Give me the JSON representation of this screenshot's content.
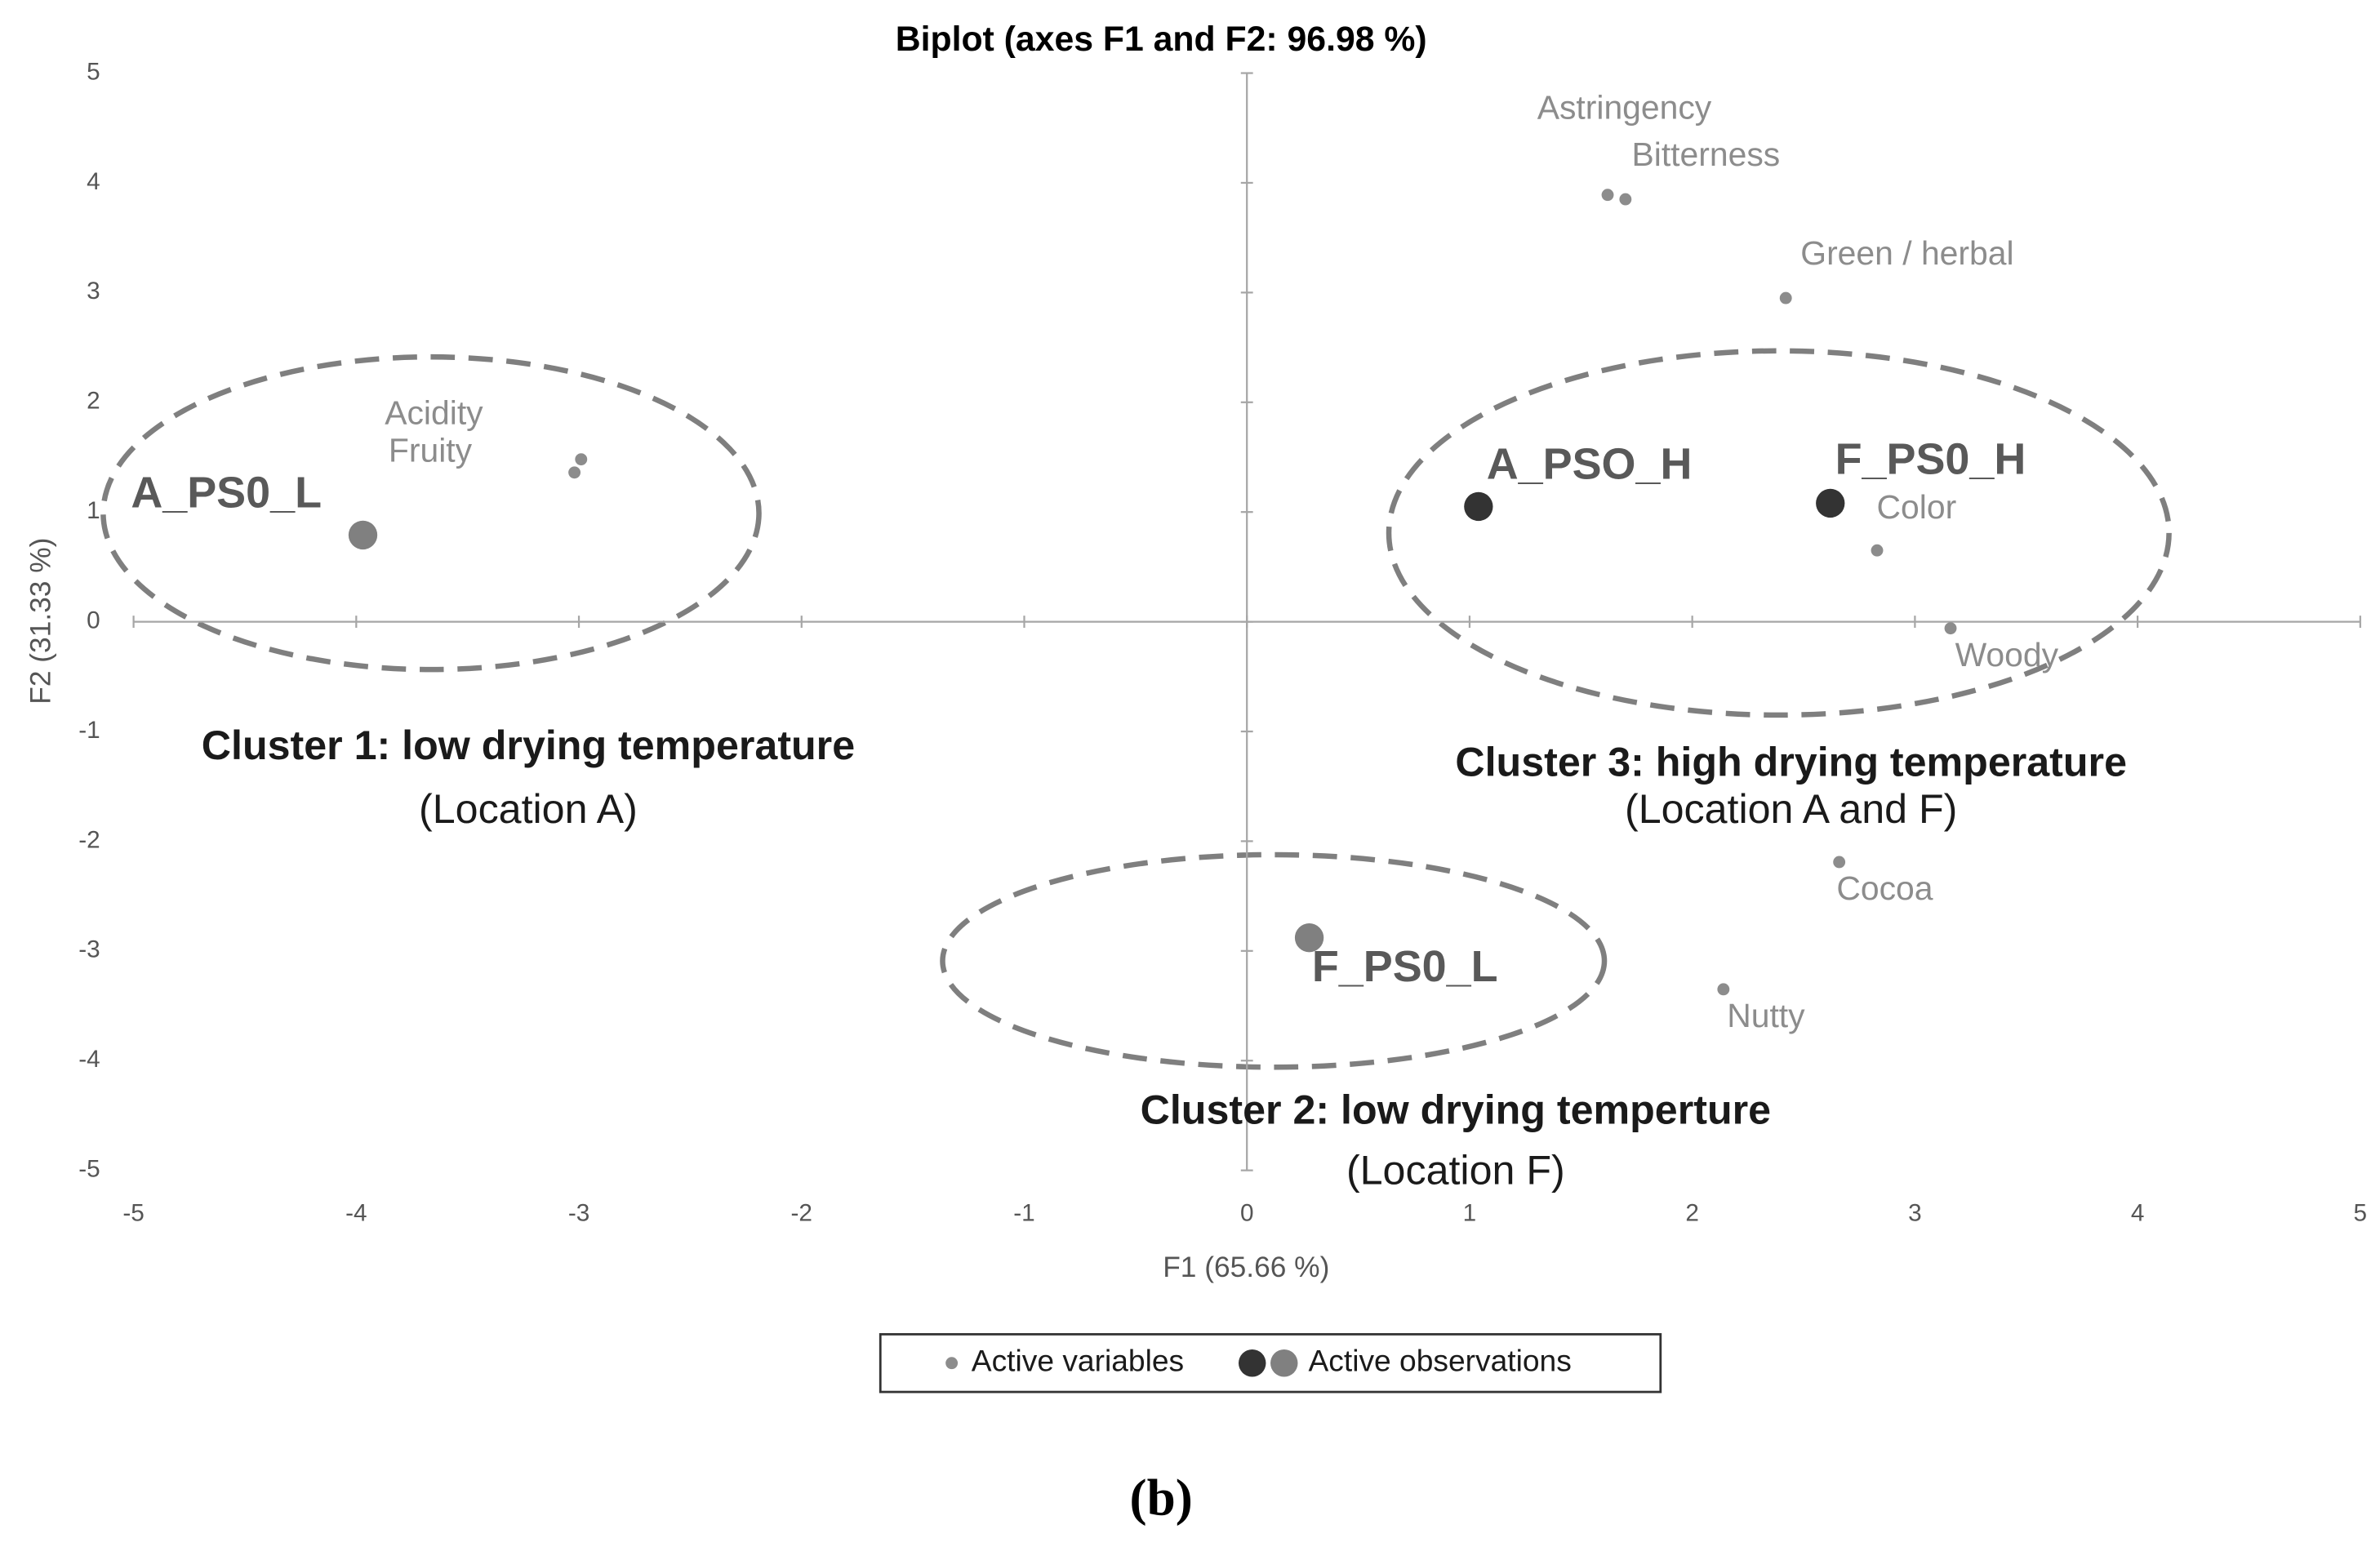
{
  "chart_data": {
    "type": "scatter",
    "title": "Biplot (axes F1 and F2: 96.98 %)",
    "xlabel": "F1 (65.66 %)",
    "ylabel": "F2 (31.33 %)",
    "caption": "(b)",
    "xlim": [
      -5,
      5
    ],
    "ylim": [
      -5,
      5
    ],
    "xticks": [
      -5,
      -4,
      -3,
      -2,
      -1,
      0,
      1,
      2,
      3,
      4,
      5
    ],
    "yticks": [
      -5,
      -4,
      -3,
      -2,
      -1,
      0,
      1,
      2,
      3,
      4,
      5
    ],
    "series": [
      {
        "name": "Active variables",
        "color": "#8c8c8c",
        "labels": [
          "Astringency",
          "Bitterness",
          "Green / herbal",
          "Acidity",
          "Fruity",
          "Color",
          "Woody",
          "Cocoa",
          "Nutty"
        ],
        "x": [
          1.62,
          1.7,
          2.42,
          -2.99,
          -3.02,
          2.83,
          3.16,
          2.66,
          2.14
        ],
        "y": [
          3.89,
          3.85,
          2.95,
          1.48,
          1.36,
          0.65,
          -0.06,
          -2.19,
          -3.35
        ]
      },
      {
        "name": "Active observations",
        "colors": [
          "#808080",
          "#333333",
          "#333333",
          "#808080"
        ],
        "labels": [
          "A_PS0_L",
          "A_PSO_H",
          "F_PS0_H",
          "F_PS0_L"
        ],
        "x": [
          -3.97,
          1.04,
          2.62,
          0.28
        ],
        "y": [
          0.79,
          1.05,
          1.08,
          -2.88
        ]
      }
    ],
    "annotations": [
      "Cluster 1: low drying temperature",
      "(Location A)",
      "Cluster 3: high drying temperature",
      "(Location A and F)",
      "Cluster 2: low drying temperture",
      "(Location F)"
    ]
  }
}
